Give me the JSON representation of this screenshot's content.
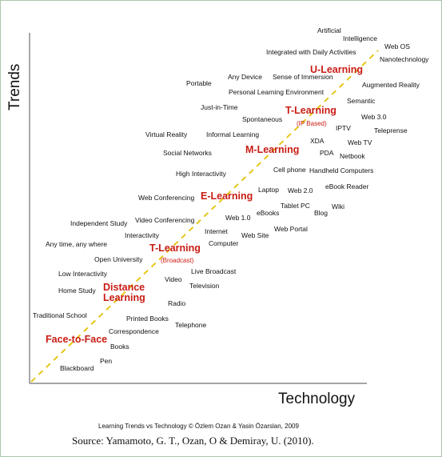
{
  "axes": {
    "y_label": "Trends",
    "x_label": "Technology"
  },
  "stages": [
    {
      "label": "Face-to-Face",
      "sublabel": ""
    },
    {
      "label": "Distance\nLearning",
      "sublabel": ""
    },
    {
      "label": "T-Learning",
      "sublabel": "(Broadcast)"
    },
    {
      "label": "E-Learning",
      "sublabel": ""
    },
    {
      "label": "M-Learning",
      "sublabel": ""
    },
    {
      "label": "T-Learning",
      "sublabel": "(IP Based)"
    },
    {
      "label": "U-Learning",
      "sublabel": ""
    }
  ],
  "trends": [
    "Artificial",
    "Intelligence",
    "Integrated with Daily Activities",
    "Any Device",
    "Sense of Immersion",
    "Portable",
    "Personal Learning Environment",
    "Just-in-Time",
    "Spontaneous",
    "Virtual Reality",
    "Informal Learning",
    "Social Networks",
    "High Interactivity",
    "Web Conferencing",
    "Video Conferencing",
    "Independent Study",
    "Interactivity",
    "Any time, any where",
    "Open University",
    "Low Interactivity",
    "Home Study",
    "Traditional School"
  ],
  "technologies": [
    "Web OS",
    "Nanotechnology",
    "Augmented Reality",
    "Semantic",
    "Web 3.0",
    "IPTV",
    "Teleprense",
    "XDA",
    "Web TV",
    "PDA",
    "Netbook",
    "Cell phone",
    "Handheld Computers",
    "Laptop",
    "Web 2.0",
    "eBook Reader",
    "eBooks",
    "Tablet PC",
    "Wiki",
    "Blog",
    "Web 1.0",
    "Internet",
    "Web Site",
    "Web Portal",
    "Computer",
    "Live Broadcast",
    "Video",
    "Television",
    "Radio",
    "Printed Books",
    "Telephone",
    "Correspondence",
    "Books",
    "Pen",
    "Blackboard"
  ],
  "credit": "Learning Trends vs Technology © Özlem Ozan & Yasin Özarslan, 2009",
  "source": "Source: Yamamoto, G. T., Ozan, O & Demiray, U. (2010).",
  "colors": {
    "stage_text": "#c81c14",
    "diagonal": "#e6c619",
    "axis": "#6f6f6f",
    "border": "#a9c7a9"
  }
}
